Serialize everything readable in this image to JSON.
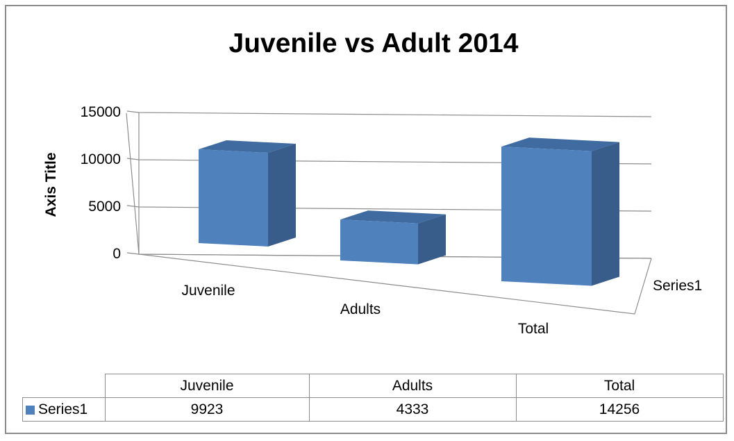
{
  "chart_data": {
    "type": "bar",
    "title": "Juvenile vs Adult 2014",
    "ylabel": "Axis Title",
    "xlabel": "",
    "categories": [
      "Juvenile",
      "Adults",
      "Total"
    ],
    "series": [
      {
        "name": "Series1",
        "values": [
          9923,
          4333,
          14256
        ]
      }
    ],
    "ylim": [
      0,
      15000
    ],
    "yticks": [
      "0",
      "5000",
      "10000",
      "15000"
    ],
    "grid": true,
    "three_d": true,
    "data_table": true,
    "colors": {
      "front": "#4f81bd",
      "side": "#385d8a",
      "top": "#3f6ba1"
    }
  }
}
